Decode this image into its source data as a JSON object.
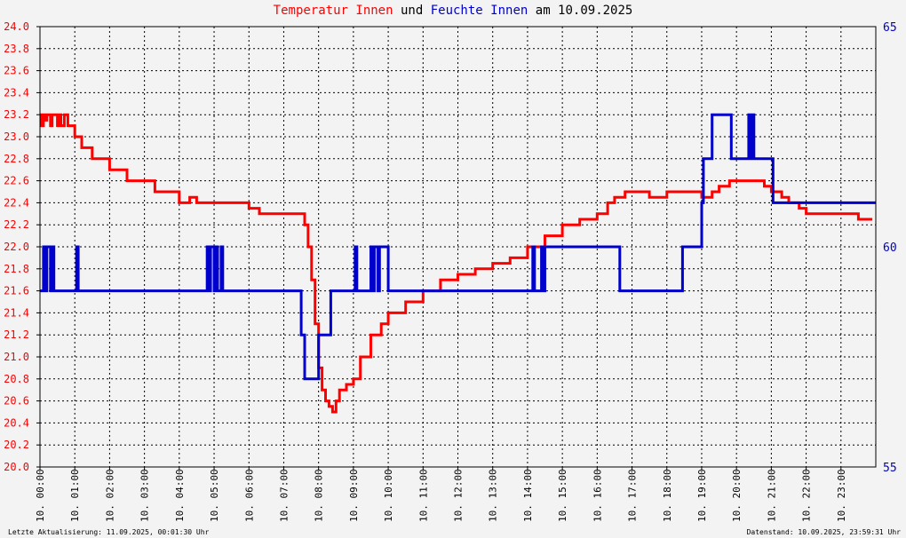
{
  "title": {
    "part1": "Temperatur",
    "part2": "Innen",
    "part3": "und",
    "part4": "Feuchte",
    "part5": "Innen",
    "part6": "am 10.09.2025",
    "temp_color": "#ff0000",
    "hum_color": "#0000cc"
  },
  "footer": {
    "left": "Letzte Aktualisierung: 11.09.2025, 00:01:30 Uhr",
    "right": "Datenstand: 10.09.2025, 23:59:31 Uhr"
  },
  "chart_data": {
    "type": "line",
    "title": "Temperatur Innen und Feuchte Innen am 10.09.2025",
    "x_unit": "hours",
    "xlim": [
      0,
      24
    ],
    "x_tick_labels": [
      "10. 00:00",
      "10. 01:00",
      "10. 02:00",
      "10. 03:00",
      "10. 04:00",
      "10. 05:00",
      "10. 06:00",
      "10. 07:00",
      "10. 08:00",
      "10. 09:00",
      "10. 10:00",
      "10. 11:00",
      "10. 12:00",
      "10. 13:00",
      "10. 14:00",
      "10. 15:00",
      "10. 16:00",
      "10. 17:00",
      "10. 18:00",
      "10. 19:00",
      "10. 20:00",
      "10. 21:00",
      "10. 22:00",
      "10. 23:00"
    ],
    "y_left": {
      "ylim": [
        20.0,
        24.0
      ],
      "ticks": [
        "20.0",
        "20.2",
        "20.4",
        "20.6",
        "20.8",
        "21.0",
        "21.2",
        "21.4",
        "21.6",
        "21.8",
        "22.0",
        "22.2",
        "22.4",
        "22.6",
        "22.8",
        "23.0",
        "23.2",
        "23.4",
        "23.6",
        "23.8",
        "24.0"
      ],
      "color": "#ff0000"
    },
    "y_right": {
      "ylim": [
        55,
        65
      ],
      "ticks": [
        "55",
        "60",
        "65"
      ],
      "color": "#0000cc"
    },
    "grid": true,
    "series": [
      {
        "name": "Temperatur Innen",
        "axis": "left",
        "color": "#ff0000",
        "x": [
          0.0,
          0.05,
          0.1,
          0.15,
          0.2,
          0.3,
          0.35,
          0.5,
          0.55,
          0.6,
          0.7,
          0.8,
          0.9,
          1.0,
          1.2,
          1.5,
          1.7,
          2.0,
          2.5,
          3.0,
          3.3,
          3.5,
          4.0,
          4.3,
          4.5,
          5.0,
          5.5,
          6.0,
          6.3,
          6.5,
          7.0,
          7.5,
          7.6,
          7.7,
          7.8,
          7.9,
          8.0,
          8.1,
          8.2,
          8.3,
          8.4,
          8.5,
          8.6,
          8.8,
          9.0,
          9.2,
          9.5,
          9.8,
          10.0,
          10.5,
          11.0,
          11.5,
          12.0,
          12.5,
          13.0,
          13.5,
          14.0,
          14.3,
          14.5,
          14.8,
          15.0,
          15.5,
          16.0,
          16.3,
          16.5,
          16.8,
          17.0,
          17.5,
          18.0,
          18.5,
          19.0,
          19.3,
          19.5,
          19.8,
          20.0,
          20.5,
          20.8,
          21.0,
          21.3,
          21.5,
          21.8,
          22.0,
          22.5,
          23.0,
          23.5,
          23.9
        ],
        "values": [
          23.2,
          23.1,
          23.2,
          23.15,
          23.2,
          23.1,
          23.2,
          23.1,
          23.2,
          23.1,
          23.2,
          23.1,
          23.1,
          23.0,
          22.9,
          22.8,
          22.8,
          22.7,
          22.6,
          22.6,
          22.5,
          22.5,
          22.4,
          22.45,
          22.4,
          22.4,
          22.4,
          22.35,
          22.3,
          22.3,
          22.3,
          22.3,
          22.2,
          22.0,
          21.7,
          21.3,
          20.9,
          20.7,
          20.6,
          20.55,
          20.5,
          20.6,
          20.7,
          20.75,
          20.8,
          21.0,
          21.2,
          21.3,
          21.4,
          21.5,
          21.6,
          21.7,
          21.75,
          21.8,
          21.85,
          21.9,
          22.0,
          22.0,
          22.1,
          22.1,
          22.2,
          22.25,
          22.3,
          22.4,
          22.45,
          22.5,
          22.5,
          22.45,
          22.5,
          22.5,
          22.45,
          22.5,
          22.55,
          22.6,
          22.6,
          22.6,
          22.55,
          22.5,
          22.45,
          22.4,
          22.35,
          22.3,
          22.3,
          22.3,
          22.25,
          22.25
        ]
      },
      {
        "name": "Feuchte Innen",
        "axis": "right",
        "color": "#0000cc",
        "x": [
          0.0,
          0.1,
          0.15,
          0.2,
          0.3,
          0.35,
          0.4,
          1.0,
          1.05,
          1.1,
          4.8,
          4.85,
          4.9,
          5.0,
          5.05,
          5.1,
          5.2,
          5.25,
          5.3,
          7.4,
          7.5,
          7.6,
          7.9,
          8.0,
          8.3,
          8.35,
          9.0,
          9.05,
          9.1,
          9.5,
          9.55,
          9.6,
          9.7,
          9.75,
          10.0,
          14.1,
          14.15,
          14.2,
          14.4,
          14.45,
          14.5,
          16.6,
          16.65,
          18.4,
          18.45,
          18.9,
          19.0,
          19.05,
          19.2,
          19.3,
          19.35,
          19.8,
          19.85,
          20.3,
          20.35,
          20.4,
          20.45,
          20.5,
          20.55,
          21.0,
          21.05,
          23.99
        ],
        "values": [
          59,
          60,
          59,
          60,
          59,
          60,
          59,
          59,
          60,
          59,
          60,
          59,
          60,
          59,
          60,
          59,
          60,
          59,
          59,
          59,
          58,
          57,
          57,
          58,
          58,
          59,
          59,
          60,
          59,
          60,
          59,
          60,
          59,
          60,
          59,
          59,
          60,
          59,
          60,
          59,
          60,
          60,
          59,
          59,
          60,
          60,
          61,
          62,
          62,
          63,
          63,
          63,
          62,
          62,
          63,
          62,
          63,
          62,
          62,
          62,
          61,
          61
        ]
      }
    ]
  }
}
